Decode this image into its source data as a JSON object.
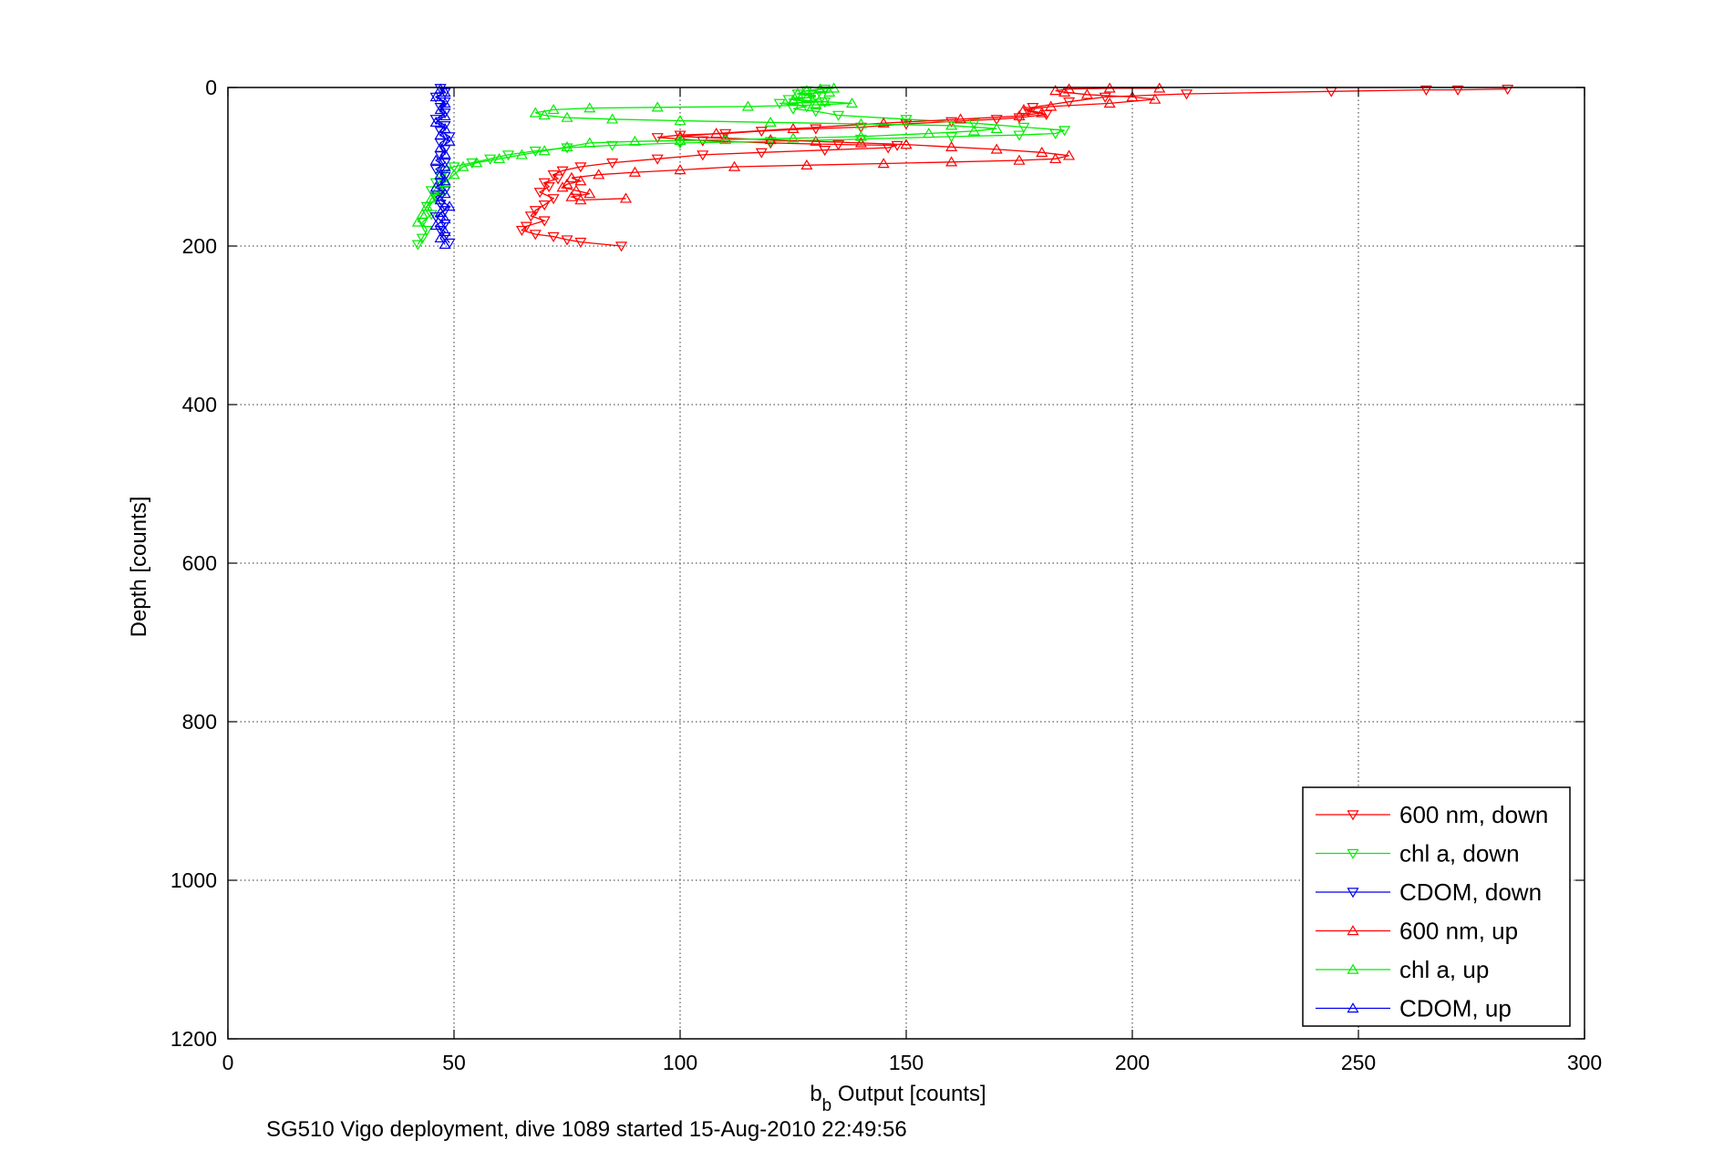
{
  "chart_data": {
    "type": "line",
    "xlabel_main": "b",
    "xlabel_sub": "b",
    "xlabel_rest": " Output [counts]",
    "ylabel": "Depth [counts]",
    "caption": "SG510 Vigo deployment, dive 1089 started 15-Aug-2010 22:49:56",
    "xlim": [
      0,
      300
    ],
    "ylim": [
      0,
      1200
    ],
    "y_reversed": true,
    "grid": true,
    "legend_position": "bottom-right",
    "x_ticks": [
      "0",
      "50",
      "100",
      "150",
      "200",
      "250",
      "300"
    ],
    "y_ticks": [
      "0",
      "200",
      "400",
      "600",
      "800",
      "1000",
      "1200"
    ],
    "series": [
      {
        "name": "600 nm, down",
        "color": "#ff0000",
        "marker": "triangle-down",
        "points": [
          [
            283,
            2
          ],
          [
            272,
            3
          ],
          [
            265,
            3
          ],
          [
            244,
            5
          ],
          [
            212,
            8
          ],
          [
            194,
            12
          ],
          [
            186,
            18
          ],
          [
            178,
            25
          ],
          [
            177,
            30
          ],
          [
            181,
            34
          ],
          [
            175,
            38
          ],
          [
            170,
            40
          ],
          [
            160,
            43
          ],
          [
            150,
            46
          ],
          [
            140,
            50
          ],
          [
            130,
            52
          ],
          [
            118,
            55
          ],
          [
            110,
            58
          ],
          [
            100,
            60
          ],
          [
            95,
            63
          ],
          [
            105,
            67
          ],
          [
            120,
            70
          ],
          [
            135,
            72
          ],
          [
            148,
            73
          ],
          [
            146,
            76
          ],
          [
            132,
            79
          ],
          [
            118,
            82
          ],
          [
            105,
            85
          ],
          [
            95,
            90
          ],
          [
            85,
            95
          ],
          [
            78,
            100
          ],
          [
            74,
            105
          ],
          [
            72,
            110
          ],
          [
            73,
            115
          ],
          [
            70,
            120
          ],
          [
            71,
            125
          ],
          [
            69,
            132
          ],
          [
            72,
            140
          ],
          [
            70,
            148
          ],
          [
            68,
            155
          ],
          [
            67,
            162
          ],
          [
            70,
            168
          ],
          [
            66,
            175
          ],
          [
            65,
            180
          ],
          [
            68,
            185
          ],
          [
            72,
            188
          ],
          [
            75,
            192
          ],
          [
            78,
            195
          ],
          [
            87,
            200
          ]
        ]
      },
      {
        "name": "chl a, down",
        "color": "#00ee00",
        "marker": "triangle-down",
        "points": [
          [
            132,
            2
          ],
          [
            128,
            4
          ],
          [
            126,
            8
          ],
          [
            130,
            12
          ],
          [
            124,
            15
          ],
          [
            132,
            18
          ],
          [
            122,
            20
          ],
          [
            128,
            24
          ],
          [
            125,
            27
          ],
          [
            130,
            30
          ],
          [
            135,
            35
          ],
          [
            150,
            40
          ],
          [
            165,
            45
          ],
          [
            176,
            50
          ],
          [
            185,
            54
          ],
          [
            183,
            58
          ],
          [
            175,
            60
          ],
          [
            160,
            62
          ],
          [
            140,
            65
          ],
          [
            120,
            68
          ],
          [
            100,
            70
          ],
          [
            85,
            73
          ],
          [
            75,
            76
          ],
          [
            68,
            80
          ],
          [
            62,
            85
          ],
          [
            58,
            90
          ],
          [
            54,
            95
          ],
          [
            50,
            100
          ],
          [
            48,
            105
          ],
          [
            47,
            112
          ],
          [
            46,
            120
          ],
          [
            45,
            130
          ],
          [
            46,
            140
          ],
          [
            44,
            150
          ],
          [
            45,
            160
          ],
          [
            43,
            170
          ],
          [
            44,
            180
          ],
          [
            43,
            190
          ],
          [
            42,
            198
          ]
        ]
      },
      {
        "name": "CDOM, down",
        "color": "#0000ee",
        "marker": "triangle-down",
        "points": [
          [
            47,
            1
          ],
          [
            48,
            6
          ],
          [
            46,
            12
          ],
          [
            48,
            18
          ],
          [
            47,
            25
          ],
          [
            48,
            32
          ],
          [
            46,
            40
          ],
          [
            48,
            48
          ],
          [
            47,
            55
          ],
          [
            49,
            62
          ],
          [
            47,
            70
          ],
          [
            48,
            78
          ],
          [
            47,
            86
          ],
          [
            48,
            95
          ],
          [
            46,
            103
          ],
          [
            48,
            112
          ],
          [
            47,
            120
          ],
          [
            48,
            130
          ],
          [
            46,
            138
          ],
          [
            47,
            147
          ],
          [
            48,
            155
          ],
          [
            46,
            163
          ],
          [
            48,
            172
          ],
          [
            47,
            180
          ],
          [
            48,
            188
          ],
          [
            49,
            196
          ]
        ]
      },
      {
        "name": "600 nm, up",
        "color": "#ff0000",
        "marker": "triangle-up",
        "points": [
          [
            88,
            140
          ],
          [
            78,
            142
          ],
          [
            76,
            138
          ],
          [
            80,
            134
          ],
          [
            77,
            130
          ],
          [
            74,
            126
          ],
          [
            75,
            122
          ],
          [
            78,
            118
          ],
          [
            76,
            114
          ],
          [
            82,
            110
          ],
          [
            90,
            107
          ],
          [
            100,
            104
          ],
          [
            112,
            100
          ],
          [
            128,
            98
          ],
          [
            145,
            96
          ],
          [
            160,
            94
          ],
          [
            175,
            92
          ],
          [
            183,
            90
          ],
          [
            186,
            86
          ],
          [
            180,
            82
          ],
          [
            170,
            78
          ],
          [
            160,
            75
          ],
          [
            150,
            72
          ],
          [
            140,
            70
          ],
          [
            130,
            68
          ],
          [
            120,
            66
          ],
          [
            110,
            64
          ],
          [
            100,
            62
          ],
          [
            108,
            58
          ],
          [
            125,
            52
          ],
          [
            145,
            45
          ],
          [
            162,
            40
          ],
          [
            175,
            36
          ],
          [
            180,
            32
          ],
          [
            176,
            28
          ],
          [
            182,
            24
          ],
          [
            195,
            20
          ],
          [
            205,
            15
          ],
          [
            200,
            12
          ],
          [
            190,
            9
          ],
          [
            185,
            6
          ],
          [
            183,
            4
          ],
          [
            186,
            2
          ],
          [
            195,
            1
          ],
          [
            206,
            1
          ]
        ]
      },
      {
        "name": "chl a, up",
        "color": "#00ee00",
        "marker": "triangle-up",
        "points": [
          [
            42,
            170
          ],
          [
            43,
            160
          ],
          [
            44,
            150
          ],
          [
            45,
            140
          ],
          [
            47,
            130
          ],
          [
            48,
            120
          ],
          [
            50,
            110
          ],
          [
            52,
            100
          ],
          [
            55,
            95
          ],
          [
            60,
            90
          ],
          [
            65,
            85
          ],
          [
            70,
            80
          ],
          [
            75,
            75
          ],
          [
            80,
            70
          ],
          [
            90,
            68
          ],
          [
            100,
            67
          ],
          [
            110,
            66
          ],
          [
            125,
            64
          ],
          [
            140,
            62
          ],
          [
            155,
            58
          ],
          [
            165,
            55
          ],
          [
            170,
            52
          ],
          [
            160,
            48
          ],
          [
            140,
            46
          ],
          [
            120,
            44
          ],
          [
            100,
            42
          ],
          [
            85,
            40
          ],
          [
            75,
            38
          ],
          [
            70,
            35
          ],
          [
            68,
            32
          ],
          [
            72,
            28
          ],
          [
            80,
            26
          ],
          [
            95,
            25
          ],
          [
            115,
            24
          ],
          [
            130,
            22
          ],
          [
            138,
            20
          ],
          [
            132,
            18
          ],
          [
            125,
            16
          ],
          [
            128,
            13
          ],
          [
            130,
            10
          ],
          [
            126,
            8
          ],
          [
            133,
            6
          ],
          [
            128,
            4
          ],
          [
            131,
            2
          ],
          [
            134,
            1
          ]
        ]
      },
      {
        "name": "CDOM, up",
        "color": "#0000ee",
        "marker": "triangle-up",
        "points": [
          [
            48,
            198
          ],
          [
            47,
            190
          ],
          [
            48,
            182
          ],
          [
            46,
            174
          ],
          [
            48,
            166
          ],
          [
            47,
            158
          ],
          [
            49,
            150
          ],
          [
            47,
            142
          ],
          [
            48,
            134
          ],
          [
            46,
            126
          ],
          [
            48,
            118
          ],
          [
            47,
            110
          ],
          [
            48,
            100
          ],
          [
            46,
            92
          ],
          [
            48,
            84
          ],
          [
            47,
            76
          ],
          [
            49,
            68
          ],
          [
            47,
            60
          ],
          [
            48,
            52
          ],
          [
            46,
            44
          ],
          [
            48,
            36
          ],
          [
            47,
            28
          ],
          [
            48,
            20
          ],
          [
            46,
            12
          ],
          [
            48,
            6
          ],
          [
            47,
            2
          ]
        ]
      }
    ]
  }
}
